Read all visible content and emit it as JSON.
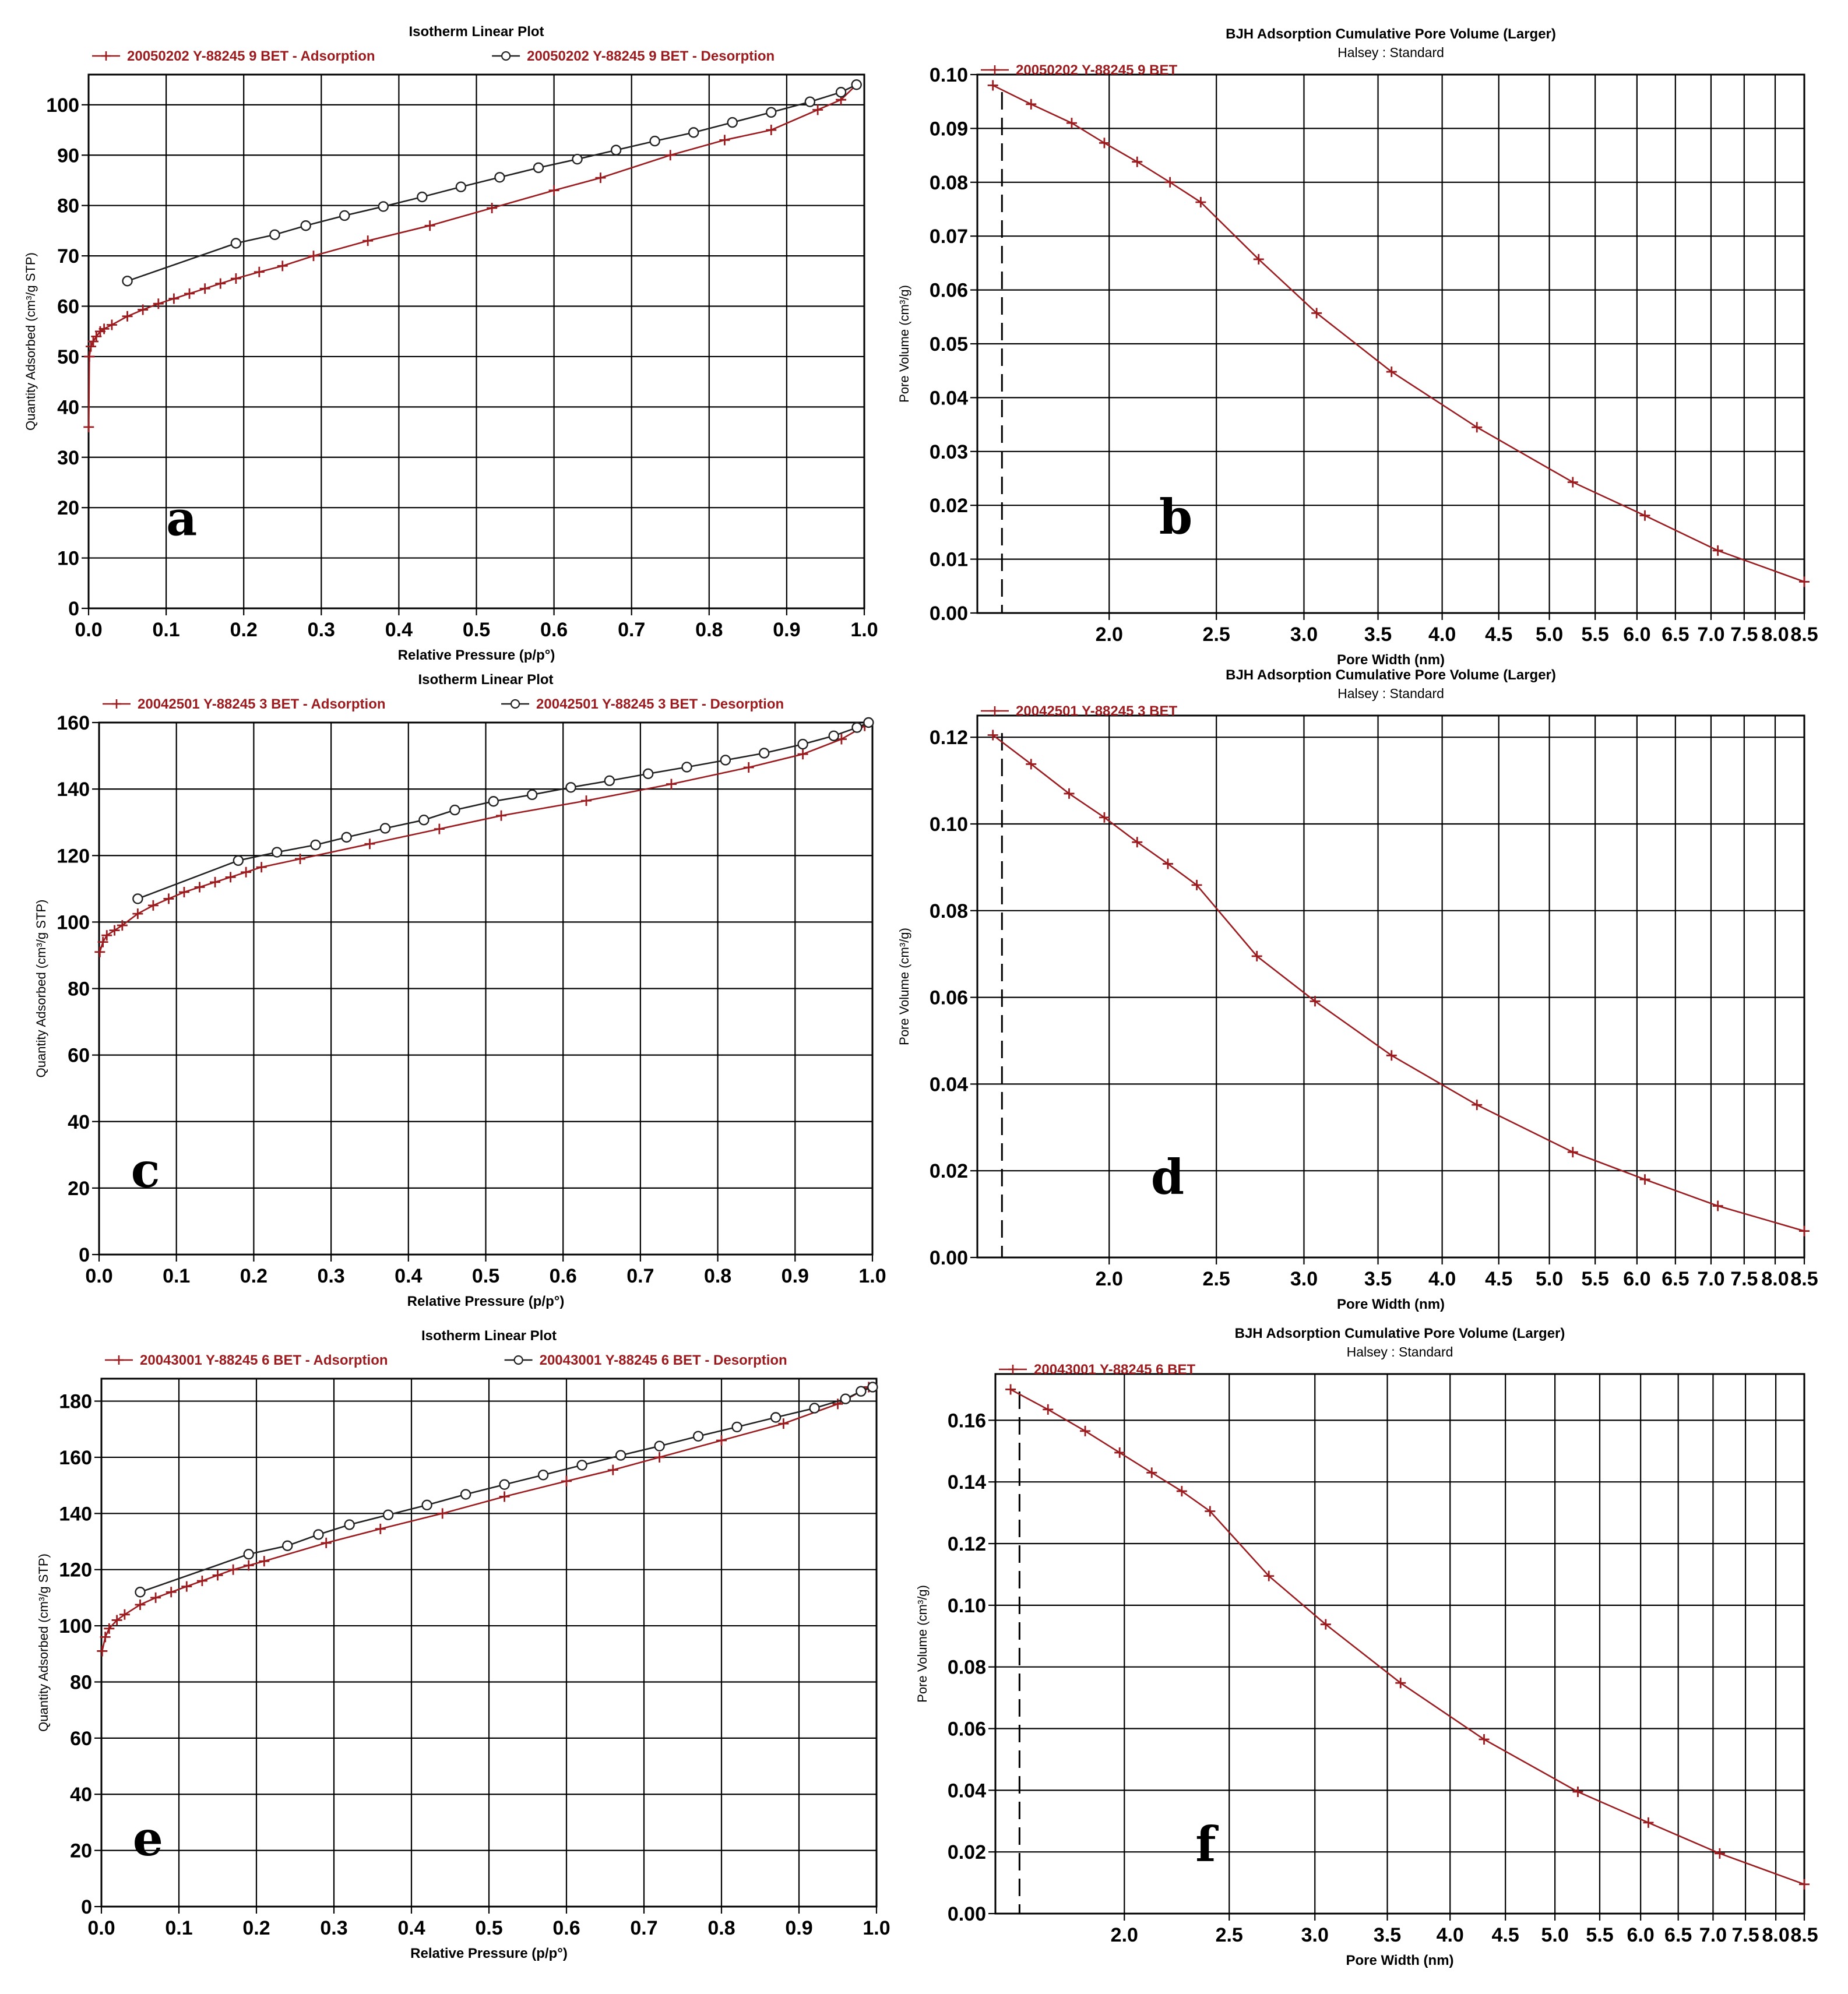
{
  "figure": {
    "charts": [
      {
        "id": "a",
        "letter": "a",
        "type": "line",
        "title": "Isotherm Linear Plot",
        "subtitle": "",
        "xlabel": "Relative Pressure (p/p°)",
        "ylabel": "Quantity Adsorbed (cm³/g STP)",
        "x_scale": "linear",
        "xlim": [
          0.0,
          1.0
        ],
        "ylim": [
          0,
          106
        ],
        "x_ticks": [
          0.0,
          0.1,
          0.2,
          0.3,
          0.4,
          0.5,
          0.6,
          0.7,
          0.8,
          0.9,
          1.0
        ],
        "x_tick_labels": [
          "0.0",
          "0.1",
          "0.2",
          "0.3",
          "0.4",
          "0.5",
          "0.6",
          "0.7",
          "0.8",
          "0.9",
          "1.0"
        ],
        "y_ticks": [
          0,
          10,
          20,
          30,
          40,
          50,
          60,
          70,
          80,
          90,
          100
        ],
        "y_tick_labels": [
          "0",
          "10",
          "20",
          "30",
          "40",
          "50",
          "60",
          "70",
          "80",
          "90",
          "100"
        ],
        "legend": [
          "20050202 Y-88245 9 BET - Adsorption",
          "20050202 Y-88245 9 BET - Desorption"
        ],
        "series": [
          {
            "name": "20050202 Y-88245 9 BET - Adsorption",
            "marker": "plus",
            "x": [
              0.0002,
              0.001,
              0.003,
              0.006,
              0.01,
              0.015,
              0.02,
              0.03,
              0.05,
              0.07,
              0.09,
              0.11,
              0.13,
              0.15,
              0.17,
              0.19,
              0.22,
              0.25,
              0.29,
              0.36,
              0.44,
              0.52,
              0.6,
              0.66,
              0.75,
              0.82,
              0.88,
              0.94,
              0.97,
              0.99
            ],
            "y": [
              36,
              50,
              52,
              53,
              54,
              55,
              55.5,
              56.3,
              58,
              59.3,
              60.5,
              61.5,
              62.5,
              63.5,
              64.5,
              65.5,
              66.8,
              68,
              70,
              73,
              76,
              79.5,
              83,
              85.5,
              90,
              93,
              95,
              99,
              101,
              104
            ]
          },
          {
            "name": "20050202 Y-88245 9 BET - Desorption",
            "marker": "circle",
            "x": [
              0.05,
              0.19,
              0.24,
              0.28,
              0.33,
              0.38,
              0.43,
              0.48,
              0.53,
              0.58,
              0.63,
              0.68,
              0.73,
              0.78,
              0.83,
              0.88,
              0.93,
              0.97,
              0.99
            ],
            "y": [
              65,
              72.5,
              74.2,
              76,
              78,
              79.8,
              81.7,
              83.7,
              85.6,
              87.5,
              89.2,
              91,
              92.8,
              94.5,
              96.5,
              98.5,
              100.6,
              102.5,
              104
            ]
          }
        ]
      },
      {
        "id": "b",
        "letter": "b",
        "type": "line",
        "title": "BJH Adsorption Cumulative Pore Volume (Larger)",
        "subtitle": "Halsey : Standard",
        "xlabel": "Pore Width (nm)",
        "ylabel": "Pore Volume (cm³/g)",
        "x_scale": "log",
        "xlim": [
          1.52,
          8.5
        ],
        "ylim": [
          0.0,
          0.1
        ],
        "x_ticks": [
          2.0,
          2.5,
          3.0,
          3.5,
          4.0,
          4.5,
          5.0,
          5.5,
          6.0,
          6.5,
          7.0,
          7.5,
          8.0,
          8.5
        ],
        "x_tick_labels": [
          "2.0",
          "2.5",
          "3.0",
          "3.5",
          "4.0",
          "4.5",
          "5.0",
          "5.5",
          "6.0",
          "6.5",
          "7.0",
          "7.5",
          "8.0",
          "8.5"
        ],
        "y_ticks": [
          0,
          0.01,
          0.02,
          0.03,
          0.04,
          0.05,
          0.06,
          0.07,
          0.08,
          0.09,
          0.1
        ],
        "y_tick_labels": [
          "0.00",
          "0.01",
          "0.02",
          "0.03",
          "0.04",
          "0.05",
          "0.06",
          "0.07",
          "0.08",
          "0.09",
          "0.10"
        ],
        "legend": [
          "20050202 Y-88245 9 BET"
        ],
        "dashed_x": 1.6,
        "series": [
          {
            "name": "20050202 Y-88245 9 BET",
            "marker": "plus",
            "x": [
              1.57,
              1.7,
              1.85,
              1.98,
              2.12,
              2.27,
              2.42,
              2.73,
              3.08,
              3.6,
              4.3,
              5.25,
              6.1,
              7.1,
              8.5
            ],
            "y": [
              0.098,
              0.0945,
              0.091,
              0.0873,
              0.0838,
              0.08,
              0.0763,
              0.0657,
              0.0557,
              0.0448,
              0.0345,
              0.0243,
              0.0181,
              0.0116,
              0.0058
            ]
          }
        ]
      },
      {
        "id": "c",
        "letter": "c",
        "type": "line",
        "title": "Isotherm Linear Plot",
        "subtitle": "",
        "xlabel": "Relative Pressure (p/p°)",
        "ylabel": "Quantity Adsorbed (cm³/g STP)",
        "x_scale": "linear",
        "xlim": [
          0.0,
          1.0
        ],
        "ylim": [
          0,
          160
        ],
        "x_ticks": [
          0.0,
          0.1,
          0.2,
          0.3,
          0.4,
          0.5,
          0.6,
          0.7,
          0.8,
          0.9,
          1.0
        ],
        "x_tick_labels": [
          "0.0",
          "0.1",
          "0.2",
          "0.3",
          "0.4",
          "0.5",
          "0.6",
          "0.7",
          "0.8",
          "0.9",
          "1.0"
        ],
        "y_ticks": [
          0,
          20,
          40,
          60,
          80,
          100,
          120,
          140,
          160
        ],
        "y_tick_labels": [
          "0",
          "20",
          "40",
          "60",
          "80",
          "100",
          "120",
          "140",
          "160"
        ],
        "legend": [
          "20042501 Y-88245 3 BET - Adsorption",
          "20042501 Y-88245 3 BET - Desorption"
        ],
        "series": [
          {
            "name": "20042501 Y-88245 3 BET - Adsorption",
            "marker": "plus",
            "x": [
              0.001,
              0.005,
              0.01,
              0.02,
              0.03,
              0.05,
              0.07,
              0.09,
              0.11,
              0.13,
              0.15,
              0.17,
              0.19,
              0.21,
              0.26,
              0.35,
              0.44,
              0.52,
              0.63,
              0.74,
              0.84,
              0.91,
              0.96,
              0.99
            ],
            "y": [
              91,
              94,
              96,
              97.5,
              99,
              102.5,
              105,
              107,
              109,
              110.5,
              112,
              113.5,
              115,
              116.5,
              119,
              123.5,
              128,
              132,
              136.5,
              141.5,
              146.5,
              150.5,
              155,
              159
            ]
          },
          {
            "name": "20042501 Y-88245 3 BET - Desorption",
            "marker": "circle",
            "x": [
              0.05,
              0.18,
              0.23,
              0.28,
              0.32,
              0.37,
              0.42,
              0.46,
              0.51,
              0.56,
              0.61,
              0.66,
              0.71,
              0.76,
              0.81,
              0.86,
              0.91,
              0.95,
              0.98,
              0.995
            ],
            "y": [
              107,
              118.5,
              121,
              123.2,
              125.5,
              128.2,
              130.7,
              133.7,
              136.3,
              138.3,
              140.5,
              142.5,
              144.6,
              146.6,
              148.7,
              150.8,
              153.5,
              156,
              158.5,
              160
            ]
          }
        ]
      },
      {
        "id": "d",
        "letter": "d",
        "type": "line",
        "title": "BJH Adsorption Cumulative Pore Volume (Larger)",
        "subtitle": "Halsey : Standard",
        "xlabel": "Pore Width (nm)",
        "ylabel": "Pore Volume (cm³/g)",
        "x_scale": "log",
        "xlim": [
          1.52,
          8.5
        ],
        "ylim": [
          0.0,
          0.125
        ],
        "x_ticks": [
          2.0,
          2.5,
          3.0,
          3.5,
          4.0,
          4.5,
          5.0,
          5.5,
          6.0,
          6.5,
          7.0,
          7.5,
          8.0,
          8.5
        ],
        "x_tick_labels": [
          "2.0",
          "2.5",
          "3.0",
          "3.5",
          "4.0",
          "4.5",
          "5.0",
          "5.5",
          "6.0",
          "6.5",
          "7.0",
          "7.5",
          "8.0",
          "8.5"
        ],
        "y_ticks": [
          0,
          0.02,
          0.04,
          0.06,
          0.08,
          0.1,
          0.12
        ],
        "y_tick_labels": [
          "0.00",
          "0.02",
          "0.04",
          "0.06",
          "0.08",
          "0.10",
          "0.12"
        ],
        "legend": [
          "20042501 Y-88245 3 BET"
        ],
        "dashed_x": 1.6,
        "series": [
          {
            "name": "20042501 Y-88245 3 BET",
            "marker": "plus",
            "x": [
              1.57,
              1.7,
              1.84,
              1.98,
              2.12,
              2.26,
              2.4,
              2.72,
              3.07,
              3.6,
              4.3,
              5.25,
              6.1,
              7.1,
              8.5
            ],
            "y": [
              0.1205,
              0.1138,
              0.107,
              0.1015,
              0.0958,
              0.0908,
              0.0859,
              0.0695,
              0.0591,
              0.0466,
              0.0352,
              0.0243,
              0.018,
              0.0119,
              0.0061
            ]
          }
        ]
      },
      {
        "id": "e",
        "letter": "e",
        "type": "line",
        "title": "Isotherm Linear Plot",
        "subtitle": "",
        "xlabel": "Relative Pressure (p/p°)",
        "ylabel": "Quantity Adsorbed (cm³/g STP)",
        "x_scale": "linear",
        "xlim": [
          0.0,
          1.0
        ],
        "ylim": [
          0,
          188
        ],
        "x_ticks": [
          0.0,
          0.1,
          0.2,
          0.3,
          0.4,
          0.5,
          0.6,
          0.7,
          0.8,
          0.9,
          1.0
        ],
        "x_tick_labels": [
          "0.0",
          "0.1",
          "0.2",
          "0.3",
          "0.4",
          "0.5",
          "0.6",
          "0.7",
          "0.8",
          "0.9",
          "1.0"
        ],
        "y_ticks": [
          0,
          20,
          40,
          60,
          80,
          100,
          120,
          140,
          160,
          180
        ],
        "y_tick_labels": [
          "0",
          "20",
          "40",
          "60",
          "80",
          "100",
          "120",
          "140",
          "160",
          "180"
        ],
        "legend": [
          "20043001 Y-88245 6 BET - Adsorption",
          "20043001 Y-88245 6 BET - Desorption"
        ],
        "series": [
          {
            "name": "20043001 Y-88245 6 BET - Adsorption",
            "marker": "plus",
            "x": [
              0.001,
              0.005,
              0.01,
              0.02,
              0.03,
              0.05,
              0.07,
              0.09,
              0.11,
              0.13,
              0.15,
              0.17,
              0.19,
              0.21,
              0.29,
              0.36,
              0.44,
              0.52,
              0.6,
              0.66,
              0.72,
              0.8,
              0.88,
              0.95,
              0.99
            ],
            "y": [
              91,
              96,
              99,
              102,
              104,
              107.5,
              110,
              112,
              114,
              116,
              118,
              120,
              121.5,
              123,
              129.5,
              134.5,
              140,
              146,
              151.5,
              155.5,
              160,
              166,
              172,
              179,
              185
            ]
          },
          {
            "name": "20043001 Y-88245 6 BET - Desorption",
            "marker": "circle",
            "x": [
              0.05,
              0.19,
              0.24,
              0.28,
              0.32,
              0.37,
              0.42,
              0.47,
              0.52,
              0.57,
              0.62,
              0.67,
              0.72,
              0.77,
              0.82,
              0.87,
              0.92,
              0.96,
              0.98,
              0.995
            ],
            "y": [
              112,
              125.5,
              128.5,
              132.5,
              136,
              139.5,
              143,
              146.8,
              150.3,
              153.7,
              157.2,
              160.7,
              164,
              167.5,
              170.8,
              174.2,
              177.5,
              180.8,
              183.5,
              185
            ]
          }
        ]
      },
      {
        "id": "f",
        "letter": "f",
        "type": "line",
        "title": "BJH Adsorption Cumulative Pore Volume (Larger)",
        "subtitle": "Halsey : Standard",
        "xlabel": "Pore Width (nm)",
        "ylabel": "Pore Volume (cm³/g)",
        "x_scale": "log",
        "xlim": [
          1.52,
          8.5
        ],
        "ylim": [
          0.0,
          0.175
        ],
        "x_ticks": [
          2.0,
          2.5,
          3.0,
          3.5,
          4.0,
          4.5,
          5.0,
          5.5,
          6.0,
          6.5,
          7.0,
          7.5,
          8.0,
          8.5
        ],
        "x_tick_labels": [
          "2.0",
          "2.5",
          "3.0",
          "3.5",
          "4.0",
          "4.5",
          "5.0",
          "5.5",
          "6.0",
          "6.5",
          "7.0",
          "7.5",
          "8.0",
          "8.5"
        ],
        "y_ticks": [
          0,
          0.02,
          0.04,
          0.06,
          0.08,
          0.1,
          0.12,
          0.14,
          0.16
        ],
        "y_tick_labels": [
          "0.00",
          "0.02",
          "0.04",
          "0.06",
          "0.08",
          "0.10",
          "0.12",
          "0.14",
          "0.16"
        ],
        "legend": [
          "20043001 Y-88245 6 BET"
        ],
        "dashed_x": 1.6,
        "series": [
          {
            "name": "20043001 Y-88245 6 BET",
            "marker": "plus",
            "x": [
              1.57,
              1.7,
              1.84,
              1.98,
              2.12,
              2.26,
              2.4,
              2.72,
              3.07,
              3.6,
              4.3,
              5.25,
              6.1,
              7.1,
              8.5
            ],
            "y": [
              0.17,
              0.1635,
              0.1565,
              0.1495,
              0.143,
              0.137,
              0.1305,
              0.1095,
              0.0938,
              0.0748,
              0.0565,
              0.0395,
              0.0295,
              0.0195,
              0.0095
            ]
          }
        ]
      }
    ]
  },
  "colors": {
    "series": "#9b1b1f",
    "grid": "#000000",
    "text": "#000000",
    "background": "#ffffff"
  }
}
